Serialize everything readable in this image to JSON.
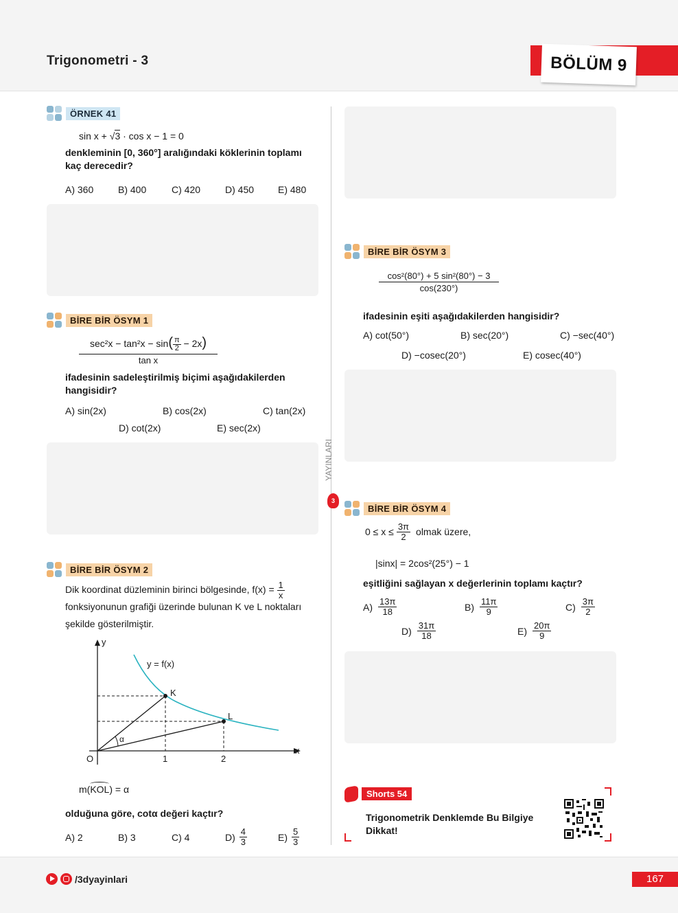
{
  "header": {
    "title": "Trigonometri - 3",
    "section": "BÖLÜM 9"
  },
  "brand_vertical": "YAYINLARI",
  "ornek41": {
    "tag": "ÖRNEK 41",
    "equation": "sin x + √3 · cos x − 1 = 0",
    "eq_a": "sin x + ",
    "eq_root": "3",
    "eq_b": " · cos x − 1 = 0",
    "question": "denkleminin [0, 360°] aralığındaki köklerinin toplamı kaç derecedir?",
    "options": [
      "A) 360",
      "B) 400",
      "C) 420",
      "D) 450",
      "E) 480"
    ]
  },
  "osym1": {
    "tag": "BİRE BİR ÖSYM 1",
    "numerator_a": "sec²x − tan²x − sin",
    "pi": "π",
    "two": "2",
    "numerator_b": "− 2x",
    "denominator": "tan x",
    "question": "ifadesinin sadeleştirilmiş biçimi aşağıdakilerden hangisidir?",
    "options": [
      "A) sin(2x)",
      "B) cos(2x)",
      "C) tan(2x)",
      "D) cot(2x)",
      "E) sec(2x)"
    ]
  },
  "osym2": {
    "tag": "BİRE BİR ÖSYM 2",
    "text_a": "Dik koordinat düzleminin birinci bölgesinde,  f(x) =",
    "frac_num": "1",
    "frac_den": "x",
    "text_b": "fonksiyonunun grafiği üzerinde bulunan K ve L noktaları",
    "text_c": "şekilde gösterilmiştir.",
    "graph": {
      "y_label": "y",
      "x_label": "x",
      "origin": "O",
      "curve_label": "y = f(x)",
      "point_k": "K",
      "point_l": "L",
      "angle": "α",
      "tick_1": "1",
      "tick_2": "2"
    },
    "condition": "m(KOL) = α",
    "cond_m": "m(",
    "cond_kol": "KOL",
    "cond_end": ") = α",
    "question": "olduğuna göre, cotα değeri kaçtır?",
    "options": [
      "A) 2",
      "B) 3",
      "C) 4",
      "D)",
      "E)"
    ],
    "opt_d": {
      "num": "4",
      "den": "3"
    },
    "opt_e": {
      "num": "5",
      "den": "3"
    }
  },
  "osym3": {
    "tag": "BİRE BİR ÖSYM 3",
    "numerator": "cos²(80°) + 5 sin²(80°) − 3",
    "denominator": "cos(230°)",
    "question": "ifadesinin eşiti aşağıdakilerden hangisidir?",
    "options": [
      "A) cot(50°)",
      "B) sec(20°)",
      "C) −sec(40°)",
      "D) −cosec(20°)",
      "E) cosec(40°)"
    ]
  },
  "osym4": {
    "tag": "BİRE BİR ÖSYM 4",
    "cond_a": "0 ≤ x ≤",
    "cond_num": "3π",
    "cond_den": "2",
    "cond_b": "olmak üzere,",
    "equation": "|sinx| = 2cos²(25°) − 1",
    "question": "eşitliğini sağlayan x değerlerinin toplamı kaçtır?",
    "options": [
      {
        "label": "A)",
        "num": "13π",
        "den": "18"
      },
      {
        "label": "B)",
        "num": "11π",
        "den": "9"
      },
      {
        "label": "C)",
        "num": "3π",
        "den": "2"
      },
      {
        "label": "D)",
        "num": "31π",
        "den": "18"
      },
      {
        "label": "E)",
        "num": "20π",
        "den": "9"
      }
    ]
  },
  "shorts": {
    "tag": "Shorts 54",
    "title": "Trigonometrik Denklemde Bu Bilgiye Dikkat!"
  },
  "footer": {
    "handle": "/3dyayinlari",
    "page": "167"
  },
  "colors": {
    "brand_red": "#e41e26",
    "curve": "#2bb3c0",
    "tag_blue": "#cfe6f3",
    "tag_orange": "#f7d3a7"
  }
}
